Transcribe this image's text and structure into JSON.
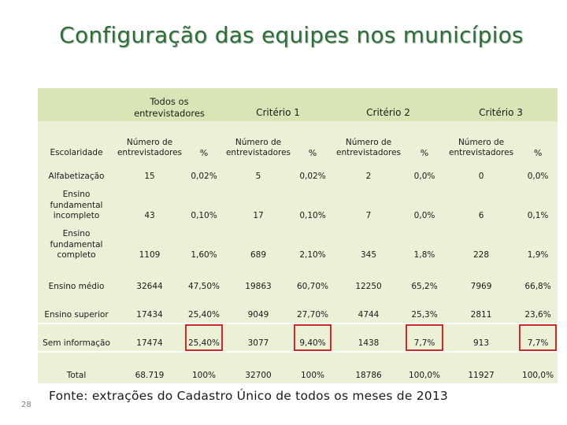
{
  "title": "Configuração das equipes nos municípios",
  "header": {
    "group_todos": "Todos os entrevistadores",
    "group_c1": "Critério 1",
    "group_c2": "Critério 2",
    "group_c3": "Critério 3",
    "escolaridade": "Escolaridade",
    "numero": "Número de entrevistadores",
    "pct": "%"
  },
  "rows": [
    {
      "label": "Alfabetização",
      "values": [
        "15",
        "0,02%",
        "5",
        "0,02%",
        "2",
        "0,0%",
        "0",
        "0,0%"
      ]
    },
    {
      "label": "Ensino fundamental incompleto",
      "values": [
        "43",
        "0,10%",
        "17",
        "0,10%",
        "7",
        "0,0%",
        "6",
        "0,1%"
      ]
    },
    {
      "label": "Ensino fundamental completo",
      "values": [
        "1109",
        "1,60%",
        "689",
        "2,10%",
        "345",
        "1,8%",
        "228",
        "1,9%"
      ]
    },
    {
      "label": "Ensino médio",
      "values": [
        "32644",
        "47,50%",
        "19863",
        "60,70%",
        "12250",
        "65,2%",
        "7969",
        "66,8%"
      ]
    },
    {
      "label": "Ensino superior",
      "values": [
        "17434",
        "25,40%",
        "9049",
        "27,70%",
        "4744",
        "25,3%",
        "2811",
        "23,6%"
      ]
    },
    {
      "label": "Sem informação",
      "values": [
        "17474",
        "25,40%",
        "3077",
        "9,40%",
        "1438",
        "7,7%",
        "913",
        "7,7%"
      ]
    },
    {
      "label": "Total",
      "values": [
        "68.719",
        "100%",
        "32700",
        "100%",
        "18786",
        "100,0%",
        "11927",
        "100,0%"
      ]
    }
  ],
  "footer": "Fonte: extrações do Cadastro Único de todos os meses de 2013",
  "page_number": "28",
  "colors": {
    "title": "#2f6d3a",
    "header": "#d9e5b5",
    "body": "#eaf1d6",
    "highlight": "#cc2a2a"
  }
}
